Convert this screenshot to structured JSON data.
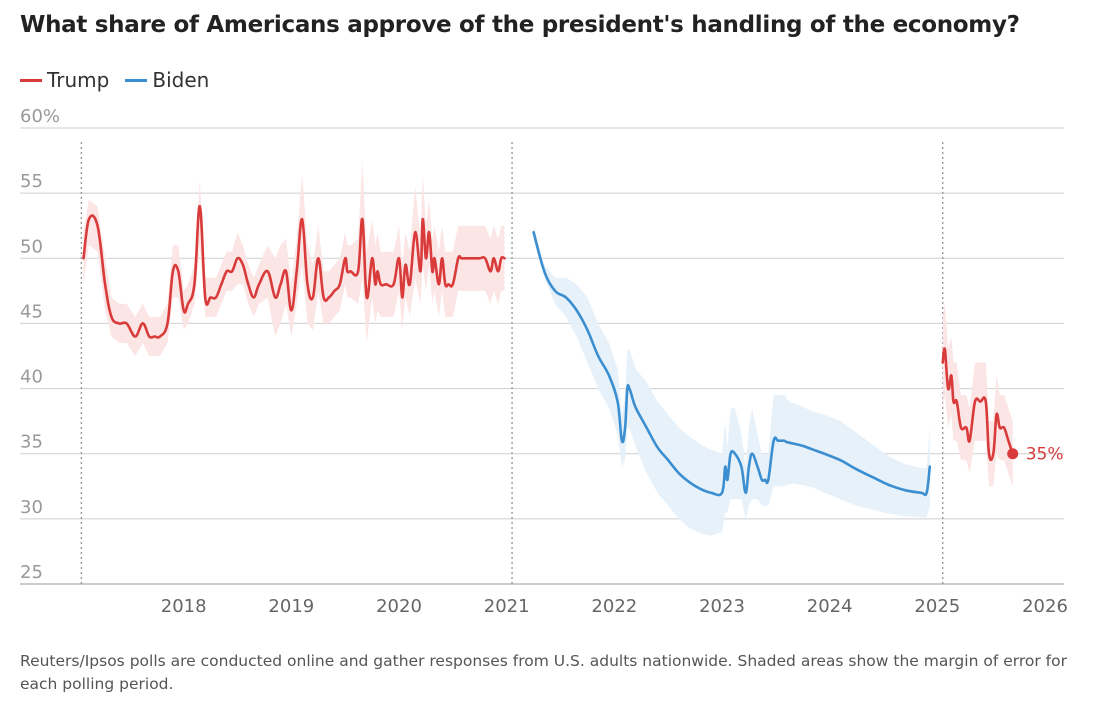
{
  "chart_data": {
    "type": "line",
    "title": "What share of Americans approve of the president's handling of the economy?",
    "note": "Reuters/Ipsos polls are conducted online and gather responses from U.S. adults nationwide. Shaded areas show the margin of error for each polling period.",
    "ylim": [
      25,
      60
    ],
    "xlim": [
      2017.0,
      2026.25
    ],
    "y_ticks": [
      25,
      30,
      35,
      40,
      45,
      50,
      55,
      60
    ],
    "y_tick_labels": [
      "25",
      "30",
      "35",
      "40",
      "45",
      "50",
      "55",
      "60%"
    ],
    "x_ticks": [
      2018,
      2019,
      2020,
      2021,
      2022,
      2023,
      2024,
      2025,
      2026
    ],
    "x_tick_labels": [
      "2018",
      "2019",
      "2020",
      "2021",
      "2022",
      "2023",
      "2024",
      "2025",
      "2026"
    ],
    "reference_lines_x": [
      2017.05,
      2021.05,
      2025.05
    ],
    "grid": true,
    "legend": "top-left",
    "annotation": {
      "label": "35%",
      "series": "Trump",
      "x": 2025.7,
      "y": 35
    },
    "series": [
      {
        "name": "Trump",
        "color": "#d93a3a",
        "band_color": "#fbe4e4",
        "segments": [
          {
            "x": [
              2017.07,
              2017.12,
              2017.2,
              2017.27,
              2017.33,
              2017.4,
              2017.47,
              2017.55,
              2017.62,
              2017.68,
              2017.73,
              2017.78,
              2017.85,
              2017.9,
              2017.95,
              2018.0,
              2018.04,
              2018.1,
              2018.15,
              2018.2,
              2018.25,
              2018.3,
              2018.35,
              2018.4,
              2018.45,
              2018.5,
              2018.55,
              2018.6,
              2018.65,
              2018.7,
              2018.78,
              2018.85,
              2018.9,
              2018.95,
              2019.0,
              2019.05,
              2019.1,
              2019.15,
              2019.2,
              2019.25,
              2019.3,
              2019.35,
              2019.4,
              2019.45,
              2019.5,
              2019.52,
              2019.55,
              2019.62,
              2019.66,
              2019.7,
              2019.75,
              2019.78,
              2019.8,
              2019.83,
              2019.88,
              2019.95,
              2020.0,
              2020.03,
              2020.06,
              2020.1,
              2020.15,
              2020.2,
              2020.22,
              2020.25,
              2020.28,
              2020.31,
              2020.33,
              2020.37,
              2020.4,
              2020.43,
              2020.46,
              2020.5,
              2020.55,
              2020.58,
              2020.62,
              2020.65,
              2020.7,
              2020.75,
              2020.8,
              2020.85,
              2020.88,
              2020.92,
              2020.95,
              2020.98
            ],
            "y": [
              50,
              53,
              52.5,
              48,
              45.5,
              45,
              45,
              44,
              45,
              44,
              44,
              44,
              45,
              49,
              49,
              46,
              46.5,
              48,
              54,
              47,
              47,
              47,
              48,
              49,
              49,
              50,
              49.5,
              48,
              47,
              48,
              49,
              47,
              48,
              49,
              46,
              49,
              53,
              48,
              47,
              50,
              47,
              47,
              47.5,
              48,
              50,
              49,
              49,
              49,
              53,
              47,
              50,
              48,
              49,
              48,
              48,
              48,
              50,
              47,
              49.5,
              48,
              52,
              49,
              53,
              50,
              52,
              49,
              50,
              48,
              50,
              48,
              48,
              48,
              50,
              50,
              50,
              50,
              50,
              50,
              50,
              49,
              50,
              49,
              50,
              50
            ],
            "lower": [
              48,
              51,
              50.5,
              46,
              44,
              43.5,
              43.5,
              42.5,
              43.5,
              42.5,
              42.5,
              42.5,
              43.5,
              47,
              47,
              44.5,
              45,
              46.5,
              51,
              45.5,
              45.5,
              45.5,
              46.5,
              47.5,
              47.5,
              48,
              48,
              46.5,
              45.5,
              46.5,
              47,
              44,
              45,
              46.5,
              44,
              46.5,
              49.5,
              45,
              44.5,
              47.5,
              45,
              45,
              45.5,
              46,
              48,
              47,
              47,
              46.5,
              48.5,
              43.5,
              47,
              45,
              46,
              45.5,
              45.5,
              45.5,
              47.5,
              44.5,
              47,
              45.5,
              48.5,
              46.5,
              49.5,
              47.5,
              49.5,
              46.5,
              47.5,
              45.5,
              47.5,
              45.5,
              45.5,
              45.5,
              47.5,
              47.5,
              47.5,
              47.5,
              47.5,
              47.5,
              47.5,
              46.5,
              47.5,
              46.5,
              47.5,
              47.5
            ],
            "upper": [
              52,
              54.5,
              54,
              50,
              47,
              46.5,
              46.5,
              45.5,
              46.5,
              45.5,
              45.5,
              45.5,
              46.5,
              51,
              51,
              47.5,
              48,
              49.5,
              56,
              48.5,
              48.5,
              48.5,
              49.5,
              50.5,
              50.5,
              52,
              51,
              49.5,
              48.5,
              49.5,
              51,
              50,
              51,
              51.5,
              48,
              51.5,
              56.5,
              51,
              49.5,
              52.5,
              49,
              49,
              49.5,
              50,
              52,
              51,
              51,
              51.5,
              57.5,
              50.5,
              53,
              51,
              52,
              50.5,
              50.5,
              50.5,
              52.5,
              49.5,
              52,
              50.5,
              55.5,
              51.5,
              56.5,
              52.5,
              54.5,
              51.5,
              52.5,
              50.5,
              52.5,
              50.5,
              50.5,
              50.5,
              52.5,
              52.5,
              52.5,
              52.5,
              52.5,
              52.5,
              52.5,
              51.5,
              52.5,
              51.5,
              52.5,
              52.5
            ]
          },
          {
            "x": [
              2025.05,
              2025.07,
              2025.1,
              2025.13,
              2025.15,
              2025.18,
              2025.22,
              2025.27,
              2025.3,
              2025.35,
              2025.4,
              2025.45,
              2025.48,
              2025.52,
              2025.55,
              2025.58,
              2025.62,
              2025.66,
              2025.7
            ],
            "y": [
              42,
              43,
              40,
              41,
              39,
              39,
              37,
              37,
              36,
              39,
              39,
              39,
              35,
              35,
              38,
              37,
              37,
              36,
              35
            ],
            "lower": [
              38.5,
              39.5,
              37,
              38,
              36,
              36,
              34.5,
              34.5,
              33.5,
              36,
              36,
              36,
              32.5,
              32.5,
              35,
              34.5,
              34.5,
              33.5,
              32.5
            ],
            "upper": [
              45.5,
              46.5,
              43,
              44,
              42,
              42,
              39.5,
              39.5,
              38.5,
              42,
              42,
              42,
              37.5,
              37.5,
              41,
              39.5,
              39.5,
              38.5,
              37.5
            ]
          }
        ]
      },
      {
        "name": "Biden",
        "color": "#3b8fd0",
        "band_color": "#e6f0fa",
        "segments": [
          {
            "x": [
              2021.25,
              2021.35,
              2021.45,
              2021.55,
              2021.65,
              2021.75,
              2021.85,
              2021.95,
              2022.03,
              2022.07,
              2022.1,
              2022.12,
              2022.14,
              2022.16,
              2022.2,
              2022.3,
              2022.4,
              2022.5,
              2022.6,
              2022.7,
              2022.8,
              2022.9,
              2023.0,
              2023.03,
              2023.05,
              2023.08,
              2023.12,
              2023.18,
              2023.22,
              2023.25,
              2023.28,
              2023.33,
              2023.37,
              2023.4,
              2023.43,
              2023.48,
              2023.52,
              2023.56,
              2023.58,
              2023.6,
              2023.65,
              2023.75,
              2023.85,
              2023.95,
              2024.1,
              2024.25,
              2024.4,
              2024.55,
              2024.7,
              2024.85,
              2024.9,
              2024.93
            ],
            "y": [
              52,
              49,
              47.5,
              47,
              46,
              44.5,
              42.5,
              41,
              39,
              36,
              37,
              40,
              40,
              39.5,
              38.5,
              37,
              35.5,
              34.5,
              33.5,
              32.8,
              32.3,
              32,
              32,
              34,
              33,
              35,
              35,
              34,
              32,
              34,
              35,
              34,
              33,
              33,
              33,
              36,
              36,
              36,
              36,
              35.9,
              35.8,
              35.6,
              35.3,
              35,
              34.5,
              33.8,
              33.2,
              32.6,
              32.2,
              32,
              32,
              34
            ],
            "lower": [
              51.5,
              48.5,
              46.5,
              45.5,
              44,
              42,
              40,
              38.5,
              36.5,
              34,
              34.5,
              37,
              37,
              36.5,
              35.5,
              33.5,
              32,
              31,
              30,
              29.3,
              28.9,
              28.7,
              29,
              30.5,
              30.5,
              31.5,
              31.5,
              31.5,
              30,
              31,
              31.5,
              31.5,
              31,
              31,
              31,
              32.5,
              32.5,
              32.5,
              32.5,
              32.6,
              32.7,
              32.6,
              32.4,
              32,
              31.5,
              31,
              30.7,
              30.4,
              30.2,
              30.1,
              30.1,
              31
            ],
            "upper": [
              52.5,
              49.5,
              48.5,
              48.5,
              48,
              47,
              45,
              43.5,
              41.5,
              38,
              39.5,
              43,
              43,
              42.5,
              41.5,
              40.5,
              39,
              38,
              37,
              36.3,
              35.7,
              35.3,
              35,
              37.5,
              35.5,
              38.5,
              38.5,
              36.5,
              34,
              37,
              38.5,
              36.5,
              35,
              35,
              35,
              39.5,
              39.5,
              39.5,
              39.5,
              39.2,
              38.9,
              38.6,
              38.2,
              38,
              37.5,
              36.6,
              35.7,
              34.8,
              34.2,
              33.9,
              33.9,
              37
            ]
          }
        ]
      }
    ]
  }
}
